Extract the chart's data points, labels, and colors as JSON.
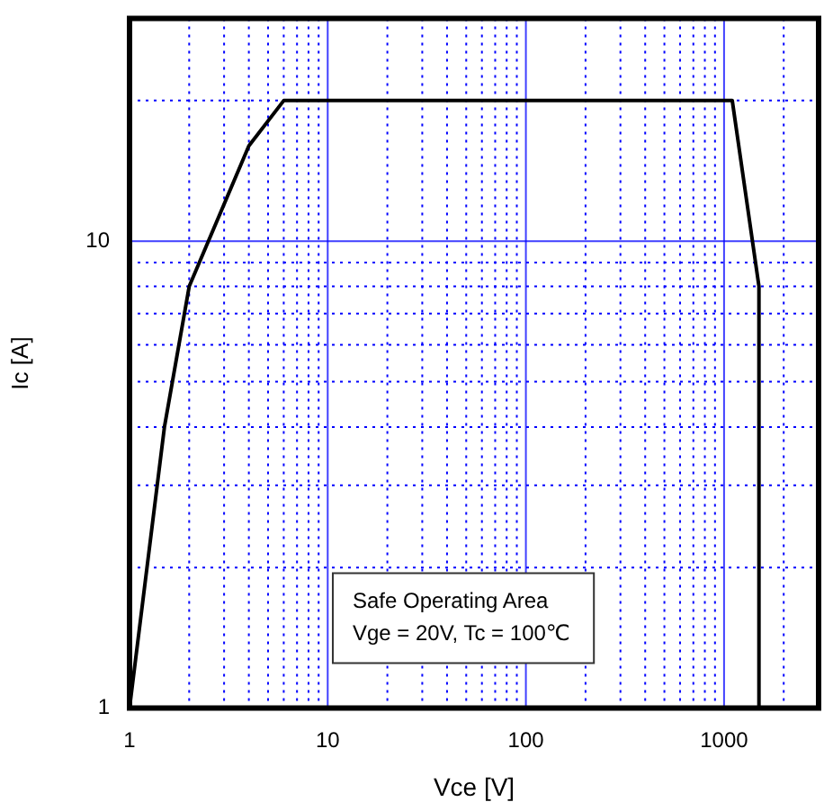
{
  "chart_data": {
    "type": "line",
    "xlabel": "Vce [V]",
    "ylabel": "Ic [A]",
    "annotations": [
      "Safe Operating Area",
      "Vge = 20V, Tc = 100℃"
    ],
    "x": [
      1,
      1.5,
      2,
      4,
      6,
      1100,
      1500,
      1500
    ],
    "series": [
      {
        "color": "#000000",
        "values": [
          1,
          4,
          8,
          16,
          20,
          20,
          8,
          1
        ]
      }
    ],
    "log": "xy",
    "xlim": [
      1,
      3000
    ],
    "ylim": [
      1,
      30
    ],
    "xticks": [
      1,
      {
        "value": 2,
        "label": null
      },
      {
        "value": 3,
        "label": null
      },
      {
        "value": 4,
        "label": null
      },
      {
        "value": 5,
        "label": null
      },
      {
        "value": 6,
        "label": null
      },
      {
        "value": 7,
        "label": null
      },
      {
        "value": 8,
        "label": null
      },
      {
        "value": 9,
        "label": null
      },
      10,
      {
        "value": 20,
        "label": null
      },
      {
        "value": 30,
        "label": null
      },
      {
        "value": 40,
        "label": null
      },
      {
        "value": 50,
        "label": null
      },
      {
        "value": 60,
        "label": null
      },
      {
        "value": 70,
        "label": null
      },
      {
        "value": 80,
        "label": null
      },
      {
        "value": 90,
        "label": null
      },
      100,
      {
        "value": 200,
        "label": null
      },
      {
        "value": 300,
        "label": null
      },
      {
        "value": 400,
        "label": null
      },
      {
        "value": 500,
        "label": null
      },
      {
        "value": 600,
        "label": null
      },
      {
        "value": 700,
        "label": null
      },
      {
        "value": 800,
        "label": null
      },
      {
        "value": 900,
        "label": null
      },
      1000,
      {
        "value": 2000,
        "label": null
      }
    ],
    "yticks": [
      1,
      {
        "value": 2,
        "label": null
      },
      {
        "value": 3,
        "label": null
      },
      {
        "value": 4,
        "label": null
      },
      {
        "value": 5,
        "label": null
      },
      {
        "value": 6,
        "label": null
      },
      {
        "value": 7,
        "label": null
      },
      {
        "value": 8,
        "label": null
      },
      {
        "value": 9,
        "label": null
      },
      10,
      {
        "value": 20,
        "label": null
      }
    ],
    "grid": true,
    "legend": false,
    "marker": "none",
    "line_style": "solid"
  }
}
